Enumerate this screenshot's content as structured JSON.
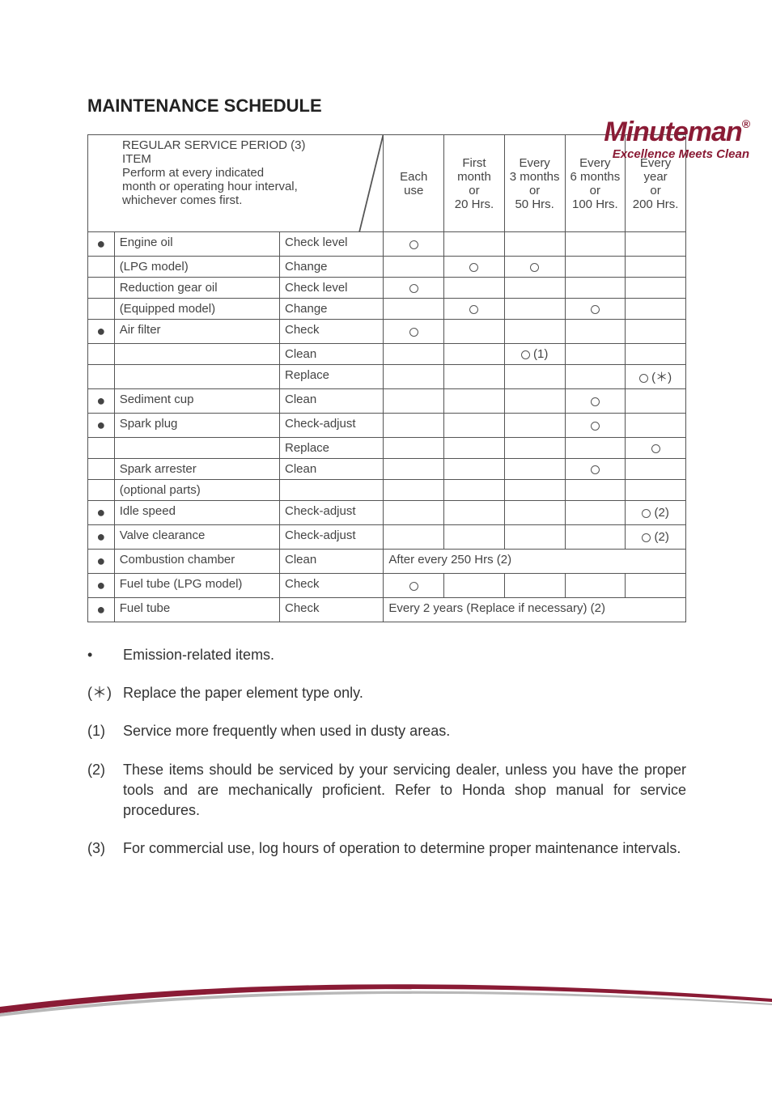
{
  "brand": {
    "name": "Minuteman",
    "tagline": "Excellence Meets Clean",
    "color": "#8a1b35",
    "reg": "®"
  },
  "title": "MAINTENANCE SCHEDULE",
  "header": {
    "block_lines": [
      "REGULAR SERVICE PERIOD (3)",
      "ITEM",
      "Perform at every indicated",
      "month or operating hour interval,",
      "whichever comes first."
    ],
    "cols": [
      {
        "l1": "Each",
        "l2": "use",
        "l3": "",
        "l4": ""
      },
      {
        "l1": "First",
        "l2": "month",
        "l3": "or",
        "l4": "20 Hrs."
      },
      {
        "l1": "Every",
        "l2": "3 months",
        "l3": "or",
        "l4": "50 Hrs."
      },
      {
        "l1": "Every",
        "l2": "6 months",
        "l3": "or",
        "l4": "100 Hrs."
      },
      {
        "l1": "Every",
        "l2": "year",
        "l3": "or",
        "l4": "200 Hrs."
      }
    ]
  },
  "rows": [
    {
      "bullet": "●",
      "item": "Engine oil",
      "action": "Check level",
      "c": [
        "o",
        "",
        "",
        "",
        ""
      ]
    },
    {
      "bullet": "",
      "item": "(LPG model)",
      "action": "Change",
      "c": [
        "",
        "o",
        "o",
        "",
        ""
      ]
    },
    {
      "bullet": "",
      "item": "Reduction gear oil",
      "action": "Check level",
      "c": [
        "o",
        "",
        "",
        "",
        ""
      ]
    },
    {
      "bullet": "",
      "item": "(Equipped model)",
      "action": "Change",
      "c": [
        "",
        "o",
        "",
        "o",
        ""
      ]
    },
    {
      "bullet": "●",
      "item": "Air filter",
      "action": "Check",
      "c": [
        "o",
        "",
        "",
        "",
        ""
      ]
    },
    {
      "bullet": "",
      "item": "",
      "action": "Clean",
      "c": [
        "",
        "",
        "o(1)",
        "",
        ""
      ]
    },
    {
      "bullet": "",
      "item": "",
      "action": "Replace",
      "c": [
        "",
        "",
        "",
        "",
        "o(*)"
      ]
    },
    {
      "bullet": "●",
      "item": "Sediment cup",
      "action": "Clean",
      "c": [
        "",
        "",
        "",
        "o",
        ""
      ]
    },
    {
      "bullet": "●",
      "item": "Spark plug",
      "action": "Check-adjust",
      "c": [
        "",
        "",
        "",
        "o",
        ""
      ]
    },
    {
      "bullet": "",
      "item": "",
      "action": "Replace",
      "c": [
        "",
        "",
        "",
        "",
        "o"
      ]
    },
    {
      "bullet": "",
      "item": "Spark arrester",
      "action": "Clean",
      "c": [
        "",
        "",
        "",
        "o",
        ""
      ]
    },
    {
      "bullet": "",
      "item": "(optional parts)",
      "action": "",
      "c": [
        "",
        "",
        "",
        "",
        ""
      ]
    },
    {
      "bullet": "●",
      "item": "Idle speed",
      "action": "Check-adjust",
      "c": [
        "",
        "",
        "",
        "",
        "o(2)"
      ]
    },
    {
      "bullet": "●",
      "item": "Valve clearance",
      "action": "Check-adjust",
      "c": [
        "",
        "",
        "",
        "",
        "o(2)"
      ]
    },
    {
      "bullet": "●",
      "item": "Combustion chamber",
      "action": "Clean",
      "span": "After every 250 Hrs (2)"
    },
    {
      "bullet": "●",
      "item": "Fuel tube (LPG model)",
      "action": "Check",
      "c": [
        "o",
        "",
        "",
        "",
        ""
      ]
    },
    {
      "bullet": "●",
      "item": "Fuel tube",
      "action": "Check",
      "span": "Every 2 years (Replace if necessary) (2)"
    }
  ],
  "notes": [
    {
      "marker": "•",
      "text": "Emission-related items."
    },
    {
      "marker": "(＊)",
      "text": "Replace the paper element type only."
    },
    {
      "marker": "(1)",
      "text": "Service more frequently when used in dusty areas."
    },
    {
      "marker": "(2)",
      "text": "These items should be serviced by your servicing dealer, unless you have the proper tools and are mechanically proficient. Refer to Honda shop manual for service procedures."
    },
    {
      "marker": "(3)",
      "text": "For commercial use, log hours of operation to determine proper maintenance intervals."
    }
  ],
  "style": {
    "table_border_color": "#555",
    "text_color": "#444",
    "title_fontsize": 22,
    "body_fontsize": 15,
    "notes_fontsize": 18
  }
}
